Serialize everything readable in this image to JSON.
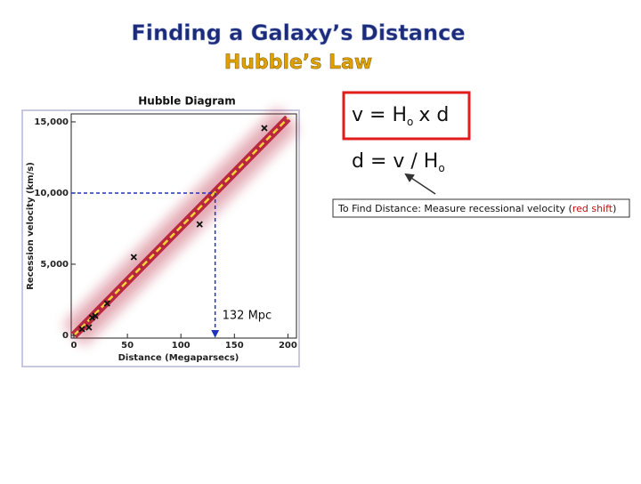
{
  "title": "Finding a Galaxy’s Distance",
  "subtitle": "Hubble’s Law",
  "formula_1": {
    "left": "v = H",
    "sub": "o",
    "right": "x d"
  },
  "formula_2": {
    "left": "d =  v / H",
    "sub": "o"
  },
  "note": {
    "before": "To Find Distance:  Measure recessional velocity (",
    "highlight": "red shift",
    "after": ")"
  },
  "chart_data": {
    "type": "scatter",
    "title": "Hubble Diagram",
    "x_label": "Distance (Megaparsecs)",
    "y_label": "Recession velocity (km/s)",
    "xlim": [
      -2.5,
      208
    ],
    "ylim": [
      -190,
      15560
    ],
    "xticks": [
      0,
      50,
      100,
      150,
      200
    ],
    "yticks": [
      0,
      {
        "value": 5000,
        "label": "5,000"
      },
      {
        "value": 10000,
        "label": "10,000"
      },
      {
        "value": 15000,
        "label": "15,000"
      }
    ],
    "x": [
      7.5,
      14,
      17,
      20,
      31,
      56,
      117.5,
      178
    ],
    "values": [
      440,
      560,
      1250,
      1375,
      2250,
      5500,
      7800,
      14560
    ],
    "color": "#111111",
    "fit": {
      "x": [
        0,
        200
      ],
      "values": [
        0,
        15250
      ],
      "color": "#f2d43a",
      "band_color": "#b0102a"
    },
    "guide": {
      "x": 132,
      "y": 10000,
      "color": "#2233bb"
    },
    "annotation": "132 Mpc"
  }
}
